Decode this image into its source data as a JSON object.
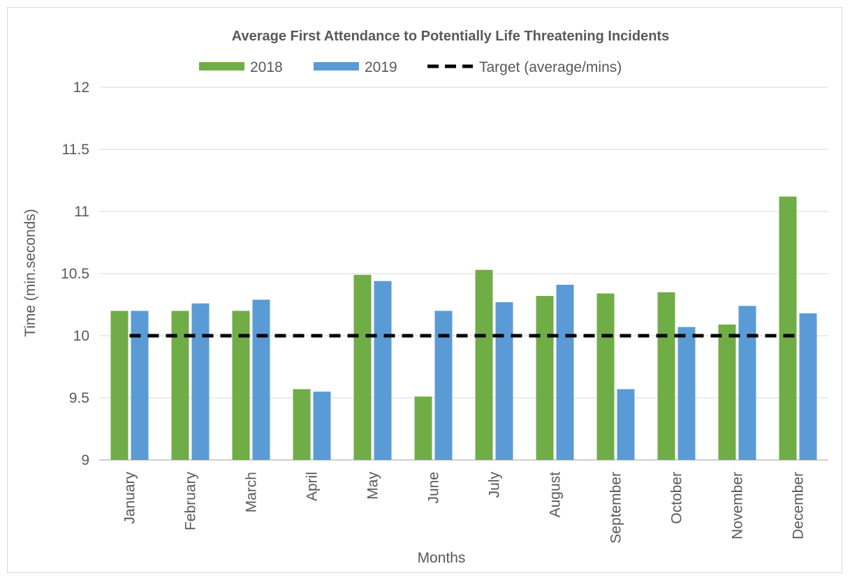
{
  "chart_data": {
    "type": "bar",
    "title": "Average First Attendance to Potentially Life Threatening Incidents",
    "xlabel": "Months",
    "ylabel": "Time (min.seconds)",
    "ylim": [
      9,
      12
    ],
    "yticks": [
      "9",
      "9.5",
      "10",
      "10.5",
      "11",
      "11.5",
      "12"
    ],
    "grid": true,
    "legend_position": "top",
    "categories": [
      "January",
      "February",
      "March",
      "April",
      "May",
      "June",
      "July",
      "August",
      "September",
      "October",
      "November",
      "December"
    ],
    "series": [
      {
        "name": "2018",
        "color": "#70ad47",
        "values": [
          10.2,
          10.2,
          10.2,
          9.57,
          10.49,
          9.51,
          10.53,
          10.32,
          10.34,
          10.35,
          10.09,
          11.12
        ]
      },
      {
        "name": "2019",
        "color": "#5b9bd5",
        "values": [
          10.2,
          10.26,
          10.29,
          9.55,
          10.44,
          10.2,
          10.27,
          10.41,
          9.57,
          10.07,
          10.24,
          10.18
        ]
      }
    ],
    "target": {
      "name": "Target (average/mins)",
      "value": 10,
      "color": "#000000",
      "style": "dashed"
    }
  }
}
